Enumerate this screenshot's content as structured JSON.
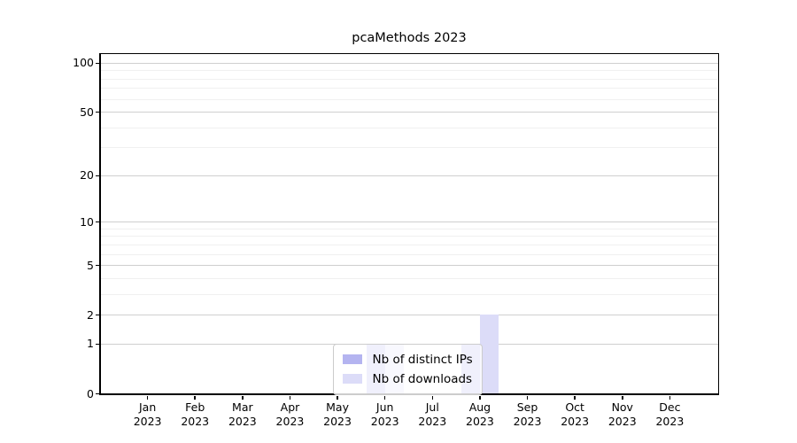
{
  "title": "pcaMethods 2023",
  "chart_data": {
    "type": "bar",
    "title": "pcaMethods 2023",
    "xlabel": "",
    "ylabel": "",
    "yscale": "log1p",
    "ylim": [
      0,
      114
    ],
    "yticks": [
      0,
      1,
      2,
      5,
      10,
      20,
      50,
      100
    ],
    "minor_gridlines": [
      3,
      4,
      6,
      7,
      8,
      9,
      30,
      40,
      60,
      70,
      80,
      90
    ],
    "grid": "horizontal",
    "legend_position": "inside-bottom-center",
    "categories": [
      "Jan 2023",
      "Feb 2023",
      "Mar 2023",
      "Apr 2023",
      "May 2023",
      "Jun 2023",
      "Jul 2023",
      "Aug 2023",
      "Sep 2023",
      "Oct 2023",
      "Nov 2023",
      "Dec 2023"
    ],
    "series": [
      {
        "name": "Nb of distinct IPs",
        "color": "#b4b4f0",
        "values": [
          0,
          0,
          0,
          0,
          0,
          1,
          0,
          1,
          0,
          0,
          0,
          0
        ]
      },
      {
        "name": "Nb of downloads",
        "color": "#dcdcf8",
        "values": [
          0,
          0,
          0,
          0,
          0,
          1,
          0,
          2,
          0,
          0,
          0,
          0
        ]
      }
    ]
  },
  "colors": {
    "axis": "#000000",
    "major_grid": "#cfcfcf",
    "minor_grid": "#f0f0f0",
    "legend_border": "#cccccc",
    "background": "#ffffff"
  }
}
